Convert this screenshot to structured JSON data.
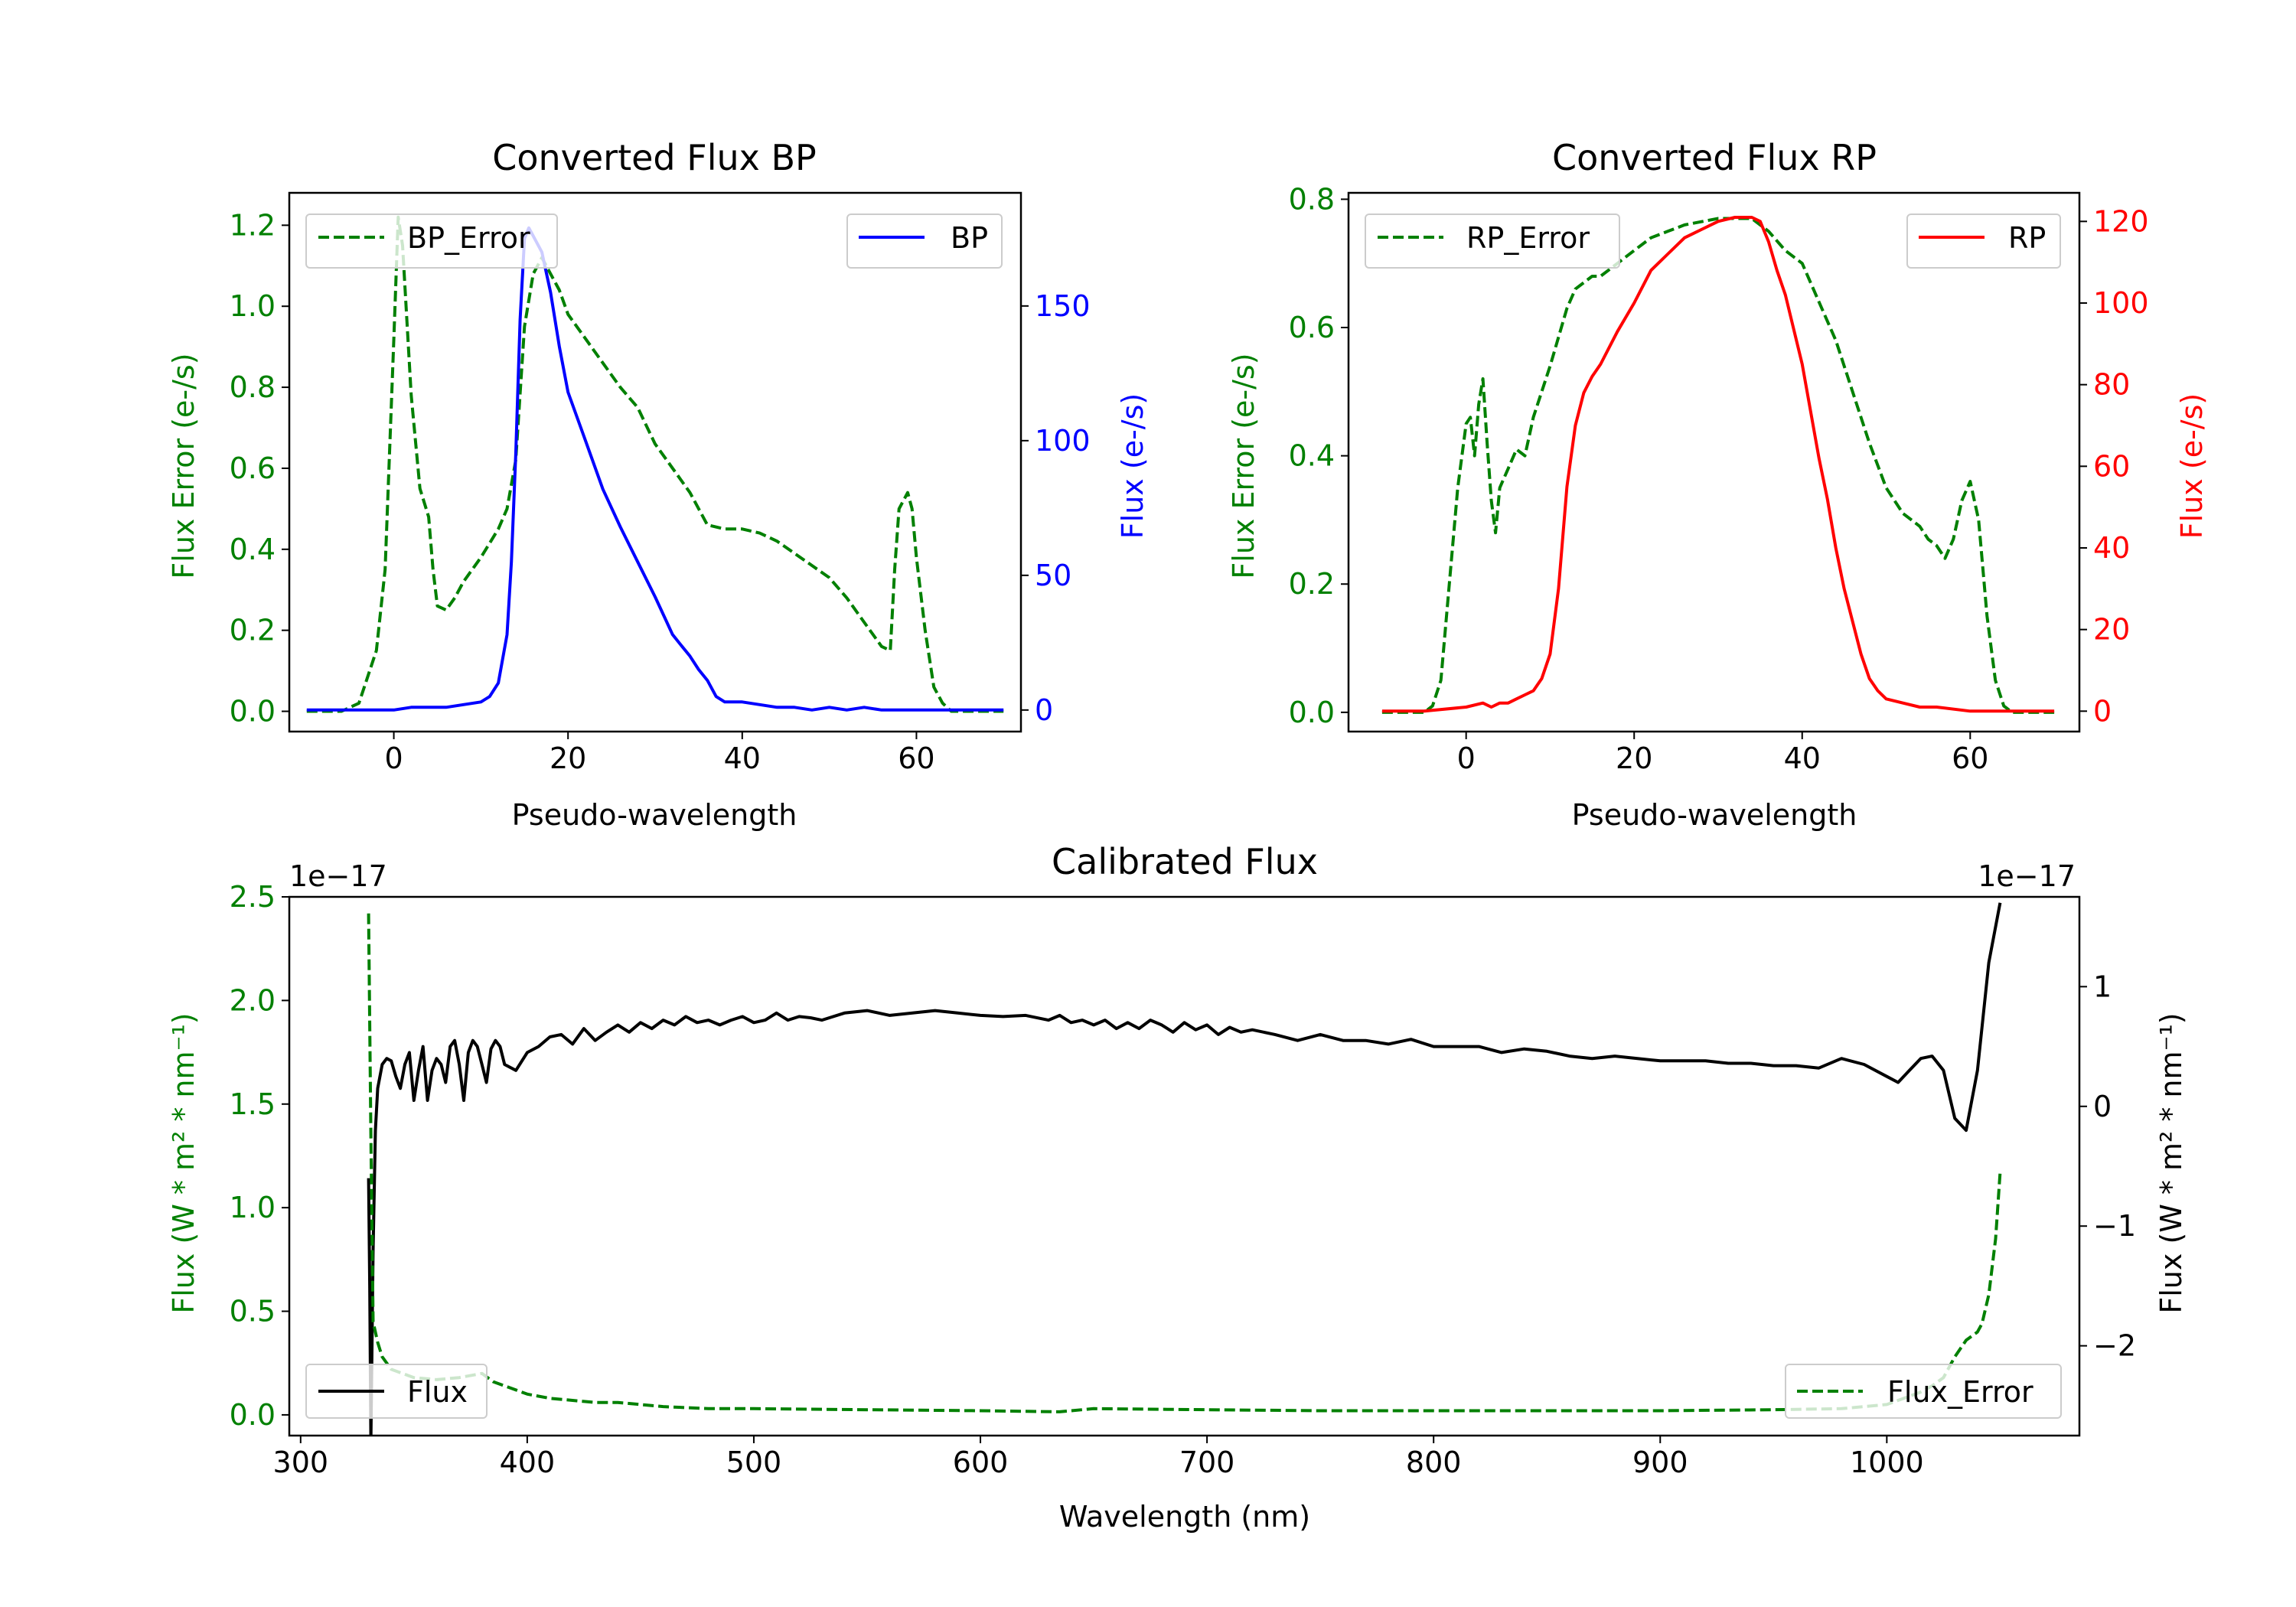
{
  "chart_data": [
    {
      "type": "line",
      "title": "Converted Flux BP",
      "xlabel": "Pseudo-wavelength",
      "ylabel_left": "Flux Error (e-/s)",
      "ylabel_right": "Flux (e-/s)",
      "xlim": [
        -12,
        72
      ],
      "ylim_left": [
        -0.05,
        1.28
      ],
      "ylim_right": [
        -8,
        192
      ],
      "xticks": [
        0,
        20,
        40,
        60
      ],
      "yticks_left": [
        0.0,
        0.2,
        0.4,
        0.6,
        0.8,
        1.0,
        1.2
      ],
      "yticks_right": [
        0,
        50,
        100,
        150
      ],
      "left_color": "#008000",
      "right_color": "#0000ff",
      "legend_left": "top-left",
      "legend_right": "top-right",
      "series": [
        {
          "name": "BP_Error",
          "axis": "left",
          "style": "dashed",
          "color": "#008000",
          "x": [
            -10,
            -6,
            -4,
            -2,
            -1,
            0,
            0.5,
            1,
            2,
            3,
            4,
            4.5,
            5,
            6,
            7,
            8,
            10,
            12,
            13,
            14,
            15,
            16,
            17,
            18,
            19,
            20,
            22,
            24,
            26,
            28,
            30,
            32,
            34,
            36,
            38,
            40,
            42,
            44,
            46,
            48,
            50,
            52,
            54,
            56,
            57,
            57.5,
            58,
            59,
            59.5,
            60,
            61,
            62,
            63,
            64,
            65,
            66,
            70
          ],
          "y": [
            0.0,
            0.0,
            0.02,
            0.15,
            0.35,
            0.92,
            1.22,
            1.15,
            0.78,
            0.55,
            0.48,
            0.35,
            0.26,
            0.25,
            0.28,
            0.32,
            0.38,
            0.45,
            0.5,
            0.62,
            0.95,
            1.08,
            1.12,
            1.08,
            1.04,
            0.98,
            0.92,
            0.86,
            0.8,
            0.75,
            0.66,
            0.6,
            0.54,
            0.46,
            0.45,
            0.45,
            0.44,
            0.42,
            0.39,
            0.36,
            0.33,
            0.28,
            0.22,
            0.16,
            0.15,
            0.35,
            0.5,
            0.54,
            0.5,
            0.38,
            0.2,
            0.06,
            0.02,
            0.0,
            0.0,
            0.0,
            0.0
          ]
        },
        {
          "name": "BP",
          "axis": "right",
          "style": "solid",
          "color": "#0000ff",
          "x": [
            -10,
            -5,
            0,
            2,
            4,
            6,
            8,
            10,
            11,
            12,
            13,
            13.5,
            14,
            14.5,
            15,
            15.5,
            16,
            17,
            18,
            19,
            20,
            22,
            24,
            26,
            28,
            30,
            31,
            32,
            33,
            34,
            35,
            36,
            37,
            38,
            40,
            42,
            44,
            46,
            48,
            50,
            52,
            54,
            56,
            60,
            65,
            70
          ],
          "y": [
            0,
            0,
            0,
            1,
            1,
            1,
            2,
            3,
            5,
            10,
            28,
            55,
            95,
            145,
            175,
            179,
            176,
            170,
            155,
            135,
            118,
            100,
            82,
            68,
            55,
            42,
            35,
            28,
            24,
            20,
            15,
            11,
            5,
            3,
            3,
            2,
            1,
            1,
            0,
            1,
            0,
            1,
            0,
            0,
            0,
            0
          ]
        }
      ]
    },
    {
      "type": "line",
      "title": "Converted Flux RP",
      "xlabel": "Pseudo-wavelength",
      "ylabel_left": "Flux Error (e-/s)",
      "ylabel_right": "Flux (e-/s)",
      "xlim": [
        -14,
        73
      ],
      "ylim_left": [
        -0.03,
        0.81
      ],
      "ylim_right": [
        -5,
        127
      ],
      "xticks": [
        0,
        20,
        40,
        60
      ],
      "yticks_left": [
        0.0,
        0.2,
        0.4,
        0.6,
        0.8
      ],
      "yticks_right": [
        0,
        20,
        40,
        60,
        80,
        100,
        120
      ],
      "left_color": "#008000",
      "right_color": "#ff0000",
      "legend_left": "top-left",
      "legend_right": "top-right",
      "series": [
        {
          "name": "RP_Error",
          "axis": "left",
          "style": "dashed",
          "color": "#008000",
          "x": [
            -10,
            -5,
            -4,
            -3,
            -2,
            -1,
            0,
            0.5,
            1,
            1.5,
            2,
            2.5,
            3,
            3.5,
            4,
            5,
            6,
            7,
            8,
            10,
            12,
            13,
            14,
            15,
            16,
            18,
            20,
            22,
            24,
            26,
            28,
            30,
            32,
            34,
            35,
            36,
            38,
            40,
            42,
            44,
            46,
            48,
            50,
            52,
            53,
            54,
            55,
            56,
            57,
            58,
            59,
            60,
            61,
            62,
            63,
            64,
            65,
            70
          ],
          "y": [
            0.0,
            0.0,
            0.01,
            0.05,
            0.2,
            0.35,
            0.45,
            0.46,
            0.4,
            0.48,
            0.52,
            0.42,
            0.33,
            0.28,
            0.35,
            0.38,
            0.41,
            0.4,
            0.46,
            0.54,
            0.63,
            0.66,
            0.67,
            0.68,
            0.68,
            0.7,
            0.72,
            0.74,
            0.75,
            0.76,
            0.765,
            0.77,
            0.77,
            0.77,
            0.76,
            0.75,
            0.72,
            0.7,
            0.64,
            0.58,
            0.5,
            0.42,
            0.35,
            0.31,
            0.3,
            0.29,
            0.27,
            0.26,
            0.24,
            0.27,
            0.33,
            0.36,
            0.3,
            0.15,
            0.05,
            0.01,
            0.0,
            0.0
          ]
        },
        {
          "name": "RP",
          "axis": "right",
          "style": "solid",
          "color": "#ff0000",
          "x": [
            -10,
            -5,
            0,
            2,
            3,
            4,
            5,
            6,
            7,
            8,
            9,
            10,
            11,
            12,
            13,
            14,
            15,
            16,
            18,
            20,
            22,
            24,
            26,
            27,
            28,
            30,
            32,
            34,
            35,
            36,
            37,
            38,
            40,
            42,
            43,
            44,
            45,
            46,
            47,
            48,
            49,
            50,
            52,
            54,
            56,
            60,
            65,
            70
          ],
          "y": [
            0,
            0,
            1,
            2,
            1,
            2,
            2,
            3,
            4,
            5,
            8,
            14,
            30,
            55,
            70,
            78,
            82,
            85,
            93,
            100,
            108,
            112,
            116,
            117,
            118,
            120,
            121,
            121,
            120,
            115,
            108,
            102,
            85,
            62,
            52,
            40,
            30,
            22,
            14,
            8,
            5,
            3,
            2,
            1,
            1,
            0,
            0,
            0
          ]
        }
      ]
    },
    {
      "type": "line",
      "title": "Calibrated Flux",
      "xlabel": "Wavelength (nm)",
      "ylabel_left": "Flux (W * m² * nm⁻¹)",
      "ylabel_right": "Flux (W * m² * nm⁻¹)",
      "offset_left": "1e−17",
      "offset_right": "1e−17",
      "xlim": [
        295,
        1085
      ],
      "ylim_left": [
        -0.1,
        2.5
      ],
      "ylim_right": [
        -2.75,
        1.75
      ],
      "xticks": [
        300,
        400,
        500,
        600,
        700,
        800,
        900,
        1000
      ],
      "yticks_left": [
        0.0,
        0.5,
        1.0,
        1.5,
        2.0,
        2.5
      ],
      "yticks_right": [
        -2,
        -1,
        0,
        1
      ],
      "left_color": "#008000",
      "right_color": "#000000",
      "legend_left": "bottom-left",
      "legend_right": "bottom-right",
      "series": [
        {
          "name": "Flux",
          "axis": "right",
          "style": "solid",
          "color": "#000000",
          "x": [
            330,
            330.5,
            331,
            332,
            333,
            334,
            336,
            338,
            340,
            342,
            344,
            346,
            348,
            350,
            352,
            354,
            356,
            358,
            360,
            362,
            364,
            366,
            368,
            370,
            372,
            374,
            376,
            378,
            380,
            382,
            384,
            386,
            388,
            390,
            395,
            400,
            405,
            410,
            415,
            420,
            425,
            430,
            435,
            440,
            445,
            450,
            455,
            460,
            465,
            470,
            475,
            480,
            485,
            490,
            495,
            500,
            505,
            510,
            515,
            520,
            525,
            530,
            540,
            550,
            560,
            570,
            580,
            590,
            600,
            610,
            620,
            630,
            635,
            640,
            645,
            650,
            655,
            660,
            665,
            670,
            675,
            680,
            685,
            690,
            695,
            700,
            705,
            710,
            715,
            720,
            730,
            740,
            750,
            760,
            770,
            780,
            790,
            800,
            810,
            820,
            830,
            840,
            850,
            860,
            870,
            880,
            890,
            900,
            910,
            920,
            930,
            940,
            950,
            960,
            970,
            980,
            990,
            1000,
            1005,
            1010,
            1015,
            1020,
            1025,
            1030,
            1035,
            1040,
            1045,
            1050
          ],
          "y": [
            -0.6,
            -1.5,
            -2.8,
            -1.2,
            -0.2,
            0.15,
            0.35,
            0.4,
            0.38,
            0.25,
            0.15,
            0.35,
            0.45,
            0.05,
            0.3,
            0.5,
            0.05,
            0.3,
            0.4,
            0.35,
            0.2,
            0.5,
            0.55,
            0.35,
            0.05,
            0.45,
            0.55,
            0.5,
            0.35,
            0.2,
            0.48,
            0.55,
            0.5,
            0.35,
            0.3,
            0.45,
            0.5,
            0.58,
            0.6,
            0.52,
            0.65,
            0.55,
            0.62,
            0.68,
            0.62,
            0.7,
            0.65,
            0.72,
            0.68,
            0.75,
            0.7,
            0.72,
            0.68,
            0.72,
            0.75,
            0.7,
            0.72,
            0.78,
            0.72,
            0.75,
            0.74,
            0.72,
            0.78,
            0.8,
            0.76,
            0.78,
            0.8,
            0.78,
            0.76,
            0.75,
            0.76,
            0.72,
            0.76,
            0.7,
            0.72,
            0.68,
            0.72,
            0.65,
            0.7,
            0.65,
            0.72,
            0.68,
            0.62,
            0.7,
            0.64,
            0.68,
            0.6,
            0.66,
            0.62,
            0.64,
            0.6,
            0.55,
            0.6,
            0.55,
            0.55,
            0.52,
            0.56,
            0.5,
            0.5,
            0.5,
            0.45,
            0.48,
            0.46,
            0.42,
            0.4,
            0.42,
            0.4,
            0.38,
            0.38,
            0.38,
            0.36,
            0.36,
            0.34,
            0.34,
            0.32,
            0.4,
            0.35,
            0.25,
            0.2,
            0.3,
            0.4,
            0.42,
            0.3,
            -0.1,
            -0.2,
            0.3,
            1.2,
            1.7
          ]
        },
        {
          "name": "Flux_Error",
          "axis": "left",
          "style": "dashed",
          "color": "#008000",
          "x": [
            330,
            331,
            332,
            334,
            336,
            340,
            345,
            350,
            360,
            370,
            380,
            385,
            390,
            400,
            410,
            420,
            430,
            440,
            450,
            460,
            480,
            500,
            550,
            600,
            635,
            640,
            650,
            700,
            750,
            800,
            850,
            900,
            950,
            980,
            990,
            1000,
            1005,
            1010,
            1015,
            1020,
            1025,
            1030,
            1035,
            1040,
            1042,
            1045,
            1048,
            1050
          ],
          "y": [
            2.42,
            1.35,
            0.45,
            0.35,
            0.28,
            0.22,
            0.2,
            0.18,
            0.17,
            0.18,
            0.2,
            0.16,
            0.14,
            0.1,
            0.08,
            0.07,
            0.06,
            0.06,
            0.05,
            0.04,
            0.03,
            0.03,
            0.025,
            0.02,
            0.015,
            0.02,
            0.03,
            0.025,
            0.02,
            0.02,
            0.02,
            0.02,
            0.025,
            0.03,
            0.04,
            0.05,
            0.07,
            0.09,
            0.11,
            0.14,
            0.18,
            0.28,
            0.36,
            0.4,
            0.44,
            0.58,
            0.85,
            1.17
          ]
        }
      ]
    }
  ]
}
